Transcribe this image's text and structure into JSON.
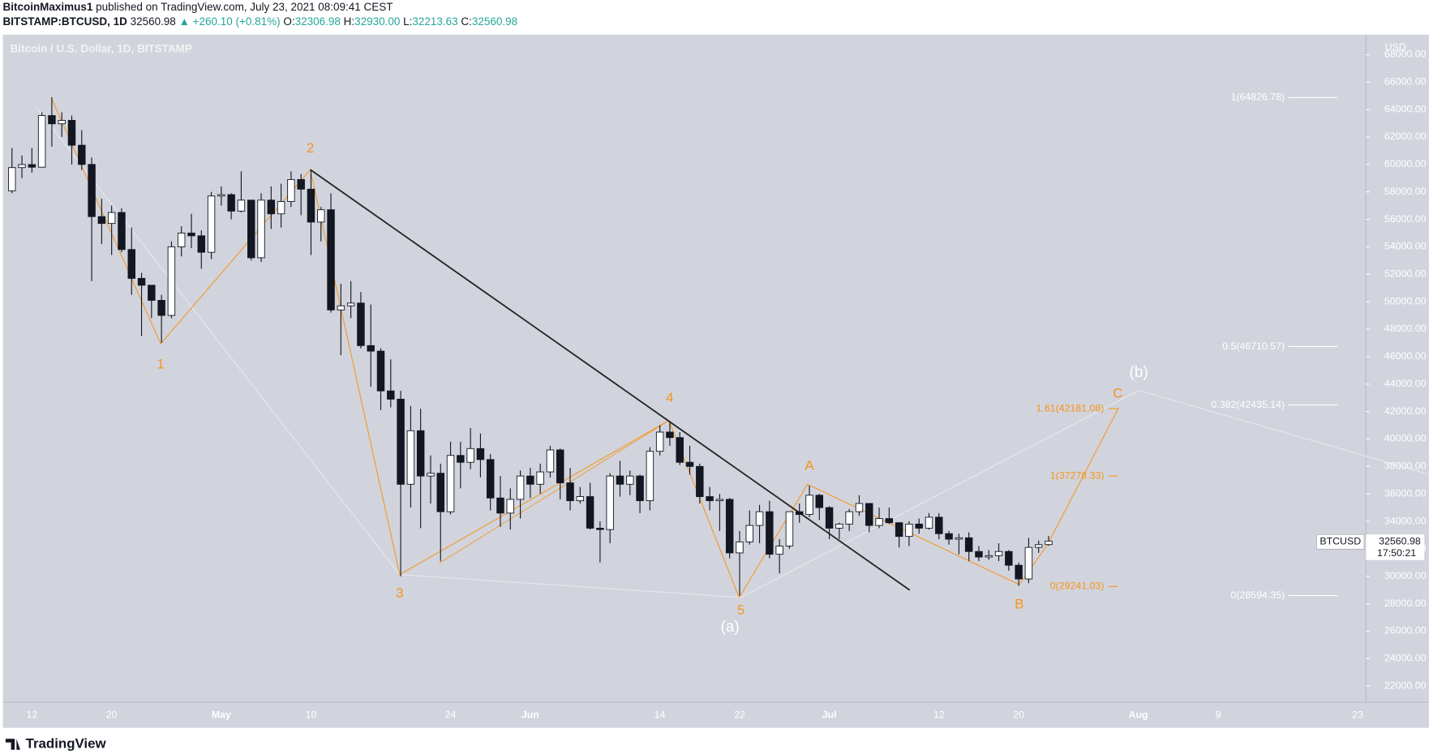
{
  "header": {
    "author": "BitcoinMaximus1",
    "published": "published on TradingView.com, July 23, 2021 08:09:41 CEST",
    "symbol": "BITSTAMP:BTCUSD, 1D",
    "last": "32560.98",
    "change": "▲ +260.10 (+0.81%)",
    "ohlc": [
      {
        "label": "O:",
        "value": "32306.98"
      },
      {
        "label": "H:",
        "value": "32930.00"
      },
      {
        "label": "L:",
        "value": "32213.63"
      },
      {
        "label": "C:",
        "value": "32560.98"
      }
    ]
  },
  "footer": {
    "logo": "TradingView"
  },
  "chart_data": {
    "type": "candlestick",
    "title": "Bitcoin / U.S. Dollar, 1D, BITSTAMP",
    "currency": "USD",
    "up_color": "#ffffff",
    "down_color": "#131722",
    "border_color": "#131722",
    "categories": [
      null,
      null,
      "12",
      null,
      null,
      null,
      null,
      null,
      null,
      null,
      "20",
      null,
      null,
      null,
      null,
      null,
      null,
      null,
      null,
      null,
      null,
      "May",
      null,
      null,
      null,
      null,
      null,
      null,
      null,
      null,
      "10",
      null,
      null,
      null,
      null,
      null,
      null,
      null,
      null,
      null,
      null,
      null,
      null,
      null,
      "24",
      null,
      null,
      null,
      null,
      null,
      null,
      null,
      "Jun",
      null,
      null,
      null,
      null,
      null,
      null,
      null,
      null,
      null,
      null,
      null,
      null,
      "14",
      null,
      null,
      null,
      null,
      null,
      null,
      null,
      "22",
      null,
      null,
      null,
      null,
      null,
      null,
      null,
      null,
      "Jul",
      null,
      null,
      null,
      null,
      null,
      null,
      null,
      null,
      null,
      null,
      "12",
      null,
      null,
      null,
      null,
      null,
      null,
      null,
      "20",
      null,
      null,
      null,
      null,
      null,
      null,
      null,
      null,
      null,
      null,
      null,
      "Aug",
      null,
      null,
      null,
      null,
      null,
      null,
      null,
      "9",
      null,
      null,
      null,
      null,
      null,
      null,
      null,
      null,
      null,
      null,
      null,
      null,
      null,
      "23",
      null
    ],
    "open": [
      58080,
      59770,
      59990,
      59800,
      63560,
      62960,
      63210,
      61400,
      60000,
      56200,
      55700,
      56500,
      53800,
      51700,
      51200,
      50100,
      49000,
      54000,
      55000,
      54800,
      53600,
      57700,
      57800,
      56600,
      57400,
      53200,
      57400,
      56400,
      57300,
      58900,
      58200,
      55800,
      56700,
      49400,
      49700,
      49900,
      46800,
      46400,
      43500,
      42900,
      36700,
      40600,
      37300,
      37500,
      34700,
      38800,
      38300,
      39300,
      38500,
      35700,
      34600,
      35600,
      37300,
      36700,
      37600,
      39200,
      36800,
      35500,
      35800,
      33500,
      33400,
      37300,
      36700,
      37300,
      35500,
      39100,
      40500,
      40100,
      38300,
      38000,
      35800,
      35500,
      35600,
      31700,
      32500,
      33700,
      34700,
      31600,
      32200,
      34700,
      34500,
      35900,
      35000,
      33500,
      33800,
      34700,
      35300,
      33700,
      34200,
      33900,
      32900,
      33800,
      33500,
      34300,
      33100,
      32700,
      32800,
      31800,
      31400,
      31500,
      31800,
      30800,
      29800,
      32100,
      32306.98,
      null,
      null,
      null,
      null,
      null,
      null,
      null,
      null,
      null,
      null,
      null,
      null,
      null,
      null,
      null,
      null,
      null,
      null,
      null,
      null,
      null,
      null,
      null,
      null,
      null,
      null,
      null,
      null,
      null,
      null,
      null,
      null
    ],
    "high": [
      61200,
      60650,
      61200,
      63800,
      64900,
      63800,
      63560,
      62500,
      60500,
      57500,
      57000,
      56800,
      55400,
      52100,
      51200,
      50500,
      54400,
      55500,
      56400,
      55200,
      58000,
      58400,
      57900,
      59500,
      57400,
      57900,
      58400,
      58600,
      59500,
      59300,
      59600,
      56900,
      57900,
      51300,
      51500,
      50700,
      49800,
      46600,
      45800,
      43500,
      42400,
      42200,
      38800,
      38200,
      39800,
      39800,
      40800,
      40400,
      38900,
      37300,
      36400,
      37700,
      37900,
      38200,
      39500,
      39300,
      37900,
      36500,
      36800,
      34000,
      37500,
      38400,
      37700,
      37400,
      39400,
      41000,
      41300,
      40500,
      39500,
      38200,
      36500,
      36000,
      35700,
      33300,
      34800,
      35200,
      35500,
      32700,
      34700,
      35300,
      36600,
      36000,
      35100,
      33900,
      34900,
      35900,
      35300,
      35000,
      35000,
      33900,
      34000,
      34200,
      34600,
      34600,
      33300,
      33100,
      33200,
      32200,
      31900,
      32400,
      31900,
      31000,
      32800,
      32600,
      32930,
      null,
      null,
      null,
      null,
      null,
      null,
      null,
      null,
      null,
      null,
      null,
      null,
      null,
      null,
      null,
      null,
      null,
      null,
      null,
      null,
      null,
      null,
      null,
      null,
      null,
      null,
      null,
      null,
      null,
      null,
      null,
      null
    ],
    "low": [
      57900,
      59000,
      59400,
      59800,
      61300,
      62000,
      60000,
      59600,
      51500,
      54200,
      53400,
      53600,
      50500,
      47500,
      48800,
      47000,
      48800,
      53300,
      53900,
      52400,
      53100,
      57000,
      56000,
      56500,
      53000,
      52900,
      55300,
      55400,
      56900,
      56300,
      53400,
      54400,
      49200,
      46100,
      48800,
      46600,
      43800,
      42100,
      42300,
      30000,
      35000,
      33500,
      35300,
      31100,
      34500,
      36400,
      37800,
      37200,
      34800,
      33600,
      33400,
      34200,
      35700,
      36000,
      37200,
      35600,
      34800,
      35300,
      33400,
      31000,
      32400,
      35800,
      35900,
      34600,
      34800,
      38800,
      39500,
      38100,
      37400,
      35300,
      34800,
      33300,
      31300,
      28600,
      32300,
      32400,
      31300,
      30200,
      32000,
      33900,
      34300,
      34100,
      32700,
      32700,
      33300,
      34400,
      33200,
      33500,
      33800,
      32100,
      32200,
      33100,
      33400,
      32700,
      32300,
      31600,
      31100,
      31100,
      31200,
      31100,
      30400,
      29300,
      29500,
      31700,
      32213.63,
      null,
      null,
      null,
      null,
      null,
      null,
      null,
      null,
      null,
      null,
      null,
      null,
      null,
      null,
      null,
      null,
      null,
      null,
      null,
      null,
      null,
      null,
      null,
      null,
      null,
      null,
      null,
      null,
      null,
      null,
      null,
      null
    ],
    "close": [
      59770,
      59990,
      59800,
      63560,
      62960,
      63210,
      61400,
      60000,
      56200,
      55700,
      56500,
      53800,
      51700,
      51200,
      50100,
      49000,
      54000,
      55000,
      54800,
      53600,
      57700,
      57800,
      56600,
      57400,
      53200,
      57400,
      56400,
      57300,
      58900,
      58200,
      55800,
      56700,
      49400,
      49700,
      49900,
      46800,
      46400,
      43500,
      42900,
      36700,
      40600,
      37300,
      37500,
      34700,
      38800,
      38300,
      39300,
      38500,
      35700,
      34600,
      35600,
      37300,
      36700,
      37600,
      39200,
      36800,
      35500,
      35800,
      33500,
      33400,
      37300,
      36700,
      37300,
      35500,
      39100,
      40500,
      40100,
      38300,
      38000,
      35800,
      35500,
      35600,
      31700,
      32500,
      33700,
      34700,
      31600,
      32200,
      34700,
      34500,
      35900,
      35000,
      33500,
      33800,
      34700,
      35300,
      33700,
      34200,
      33900,
      32900,
      33800,
      33500,
      34300,
      33100,
      32700,
      32800,
      31800,
      31400,
      31500,
      31800,
      30800,
      29800,
      32100,
      32300,
      32560.98,
      null,
      null,
      null,
      null,
      null,
      null,
      null,
      null,
      null,
      null,
      null,
      null,
      null,
      null,
      null,
      null,
      null,
      null,
      null,
      null,
      null,
      null,
      null,
      null,
      null,
      null,
      null,
      null,
      null,
      null,
      null,
      null
    ],
    "ylim": [
      20814,
      69322
    ],
    "yticks": [
      {
        "value": 22000,
        "label": "22000.00"
      },
      {
        "value": 24000,
        "label": "24000.00"
      },
      {
        "value": 26000,
        "label": "26000.00"
      },
      {
        "value": 28000,
        "label": "28000.00"
      },
      {
        "value": 30000,
        "label": "30000.00"
      },
      {
        "value": 32000,
        "label": "32000.00"
      },
      {
        "value": 34000,
        "label": "34000.00"
      },
      {
        "value": 36000,
        "label": "36000.00"
      },
      {
        "value": 38000,
        "label": "38000.00"
      },
      {
        "value": 40000,
        "label": "40000.00"
      },
      {
        "value": 42000,
        "label": "42000.00"
      },
      {
        "value": 44000,
        "label": "44000.00"
      },
      {
        "value": 46000,
        "label": "46000.00"
      },
      {
        "value": 48000,
        "label": "48000.00"
      },
      {
        "value": 50000,
        "label": "50000.00"
      },
      {
        "value": 52000,
        "label": "52000.00"
      },
      {
        "value": 54000,
        "label": "54000.00"
      },
      {
        "value": 56000,
        "label": "56000.00"
      },
      {
        "value": 58000,
        "label": "58000.00"
      },
      {
        "value": 60000,
        "label": "60000.00"
      },
      {
        "value": 62000,
        "label": "62000.00"
      },
      {
        "value": 64000,
        "label": "64000.00"
      },
      {
        "value": 66000,
        "label": "66000.00"
      },
      {
        "value": 68000,
        "label": "68000.00"
      }
    ],
    "price_label": {
      "symbol": "BTCUSD",
      "price": "32560.98",
      "countdown": "17:50:21"
    },
    "wave_labels": [
      "1",
      "2",
      "3",
      "4",
      "5",
      "(a)",
      "A",
      "B",
      "C",
      "(b)"
    ],
    "fib_main": [
      "1(64826.78)",
      "0.5(46710.57)",
      "0.382(42435.14)",
      "0(28594.35)"
    ],
    "fib_abc": [
      "1.61(42181.08)",
      "1(37278.33)",
      "0(29241.03)"
    ]
  }
}
